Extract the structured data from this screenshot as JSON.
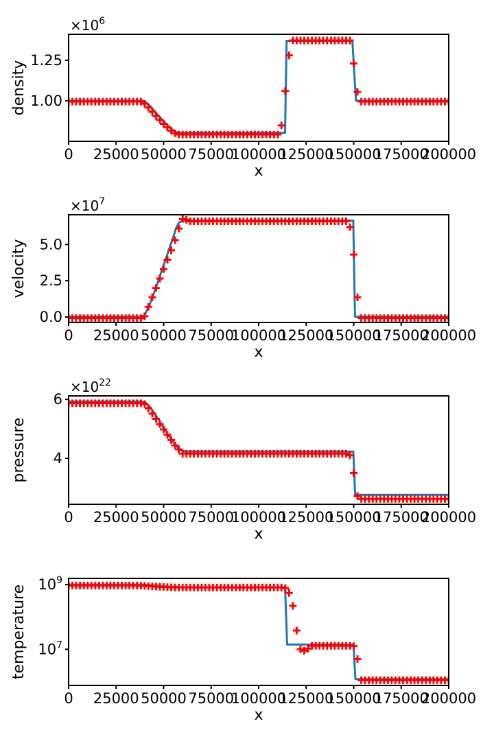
{
  "figure": {
    "background": "#ffffff",
    "xlabel": "x",
    "x_axis": {
      "min": 0,
      "max": 200000,
      "ticks": [
        0,
        25000,
        50000,
        75000,
        100000,
        125000,
        150000,
        175000,
        200000
      ],
      "tick_labels": [
        "0",
        "25000",
        "50000",
        "75000",
        "100000",
        "125000",
        "150000",
        "175000",
        "200000"
      ]
    },
    "colors": {
      "line": "#1f77b4",
      "markers": "#ff0000",
      "axis": "#000000",
      "text": "#000000"
    }
  },
  "chart_data": [
    {
      "type": "line",
      "name": "density",
      "ylabel": "density",
      "yscale": "linear",
      "unit_exponent": 6,
      "offset_label": {
        "base": "×10",
        "exp": "6"
      },
      "ylim": [
        0.75,
        1.41
      ],
      "yticks": [
        {
          "v": 1.0,
          "label": "1.00"
        },
        {
          "v": 1.25,
          "label": "1.25"
        }
      ],
      "series": [
        {
          "name": "line",
          "type": "line",
          "points": [
            [
              0,
              1.0
            ],
            [
              38500,
              1.0
            ],
            [
              40500,
              0.993
            ],
            [
              43000,
              0.966
            ],
            [
              46000,
              0.925
            ],
            [
              49000,
              0.886
            ],
            [
              52000,
              0.849
            ],
            [
              55000,
              0.818
            ],
            [
              57000,
              0.806
            ],
            [
              58500,
              0.803
            ],
            [
              113900,
              0.803
            ],
            [
              114700,
              1.37
            ],
            [
              149300,
              1.37
            ],
            [
              151200,
              1.0
            ],
            [
              200000,
              1.0
            ]
          ]
        },
        {
          "name": "markers",
          "type": "scatter",
          "marker": "plus",
          "x_start": 0,
          "x_step": 2000,
          "values": [
            0.995,
            0.995,
            0.995,
            0.995,
            0.995,
            0.995,
            0.995,
            0.995,
            0.995,
            0.995,
            0.995,
            0.995,
            0.995,
            0.995,
            0.995,
            0.995,
            0.995,
            0.995,
            0.995,
            0.995,
            0.982,
            0.958,
            0.932,
            0.906,
            0.882,
            0.858,
            0.836,
            0.816,
            0.8,
            0.792,
            0.792,
            0.792,
            0.792,
            0.792,
            0.792,
            0.792,
            0.792,
            0.792,
            0.792,
            0.792,
            0.792,
            0.792,
            0.792,
            0.792,
            0.792,
            0.792,
            0.792,
            0.792,
            0.792,
            0.792,
            0.792,
            0.792,
            0.792,
            0.792,
            0.792,
            0.792,
            0.848,
            1.06,
            1.28,
            1.372,
            1.372,
            1.372,
            1.372,
            1.372,
            1.372,
            1.372,
            1.372,
            1.372,
            1.372,
            1.372,
            1.372,
            1.372,
            1.372,
            1.372,
            1.372,
            1.23,
            1.055,
            0.995,
            0.995,
            0.995,
            0.995,
            0.995,
            0.995,
            0.995,
            0.995,
            0.995,
            0.995,
            0.995,
            0.995,
            0.995,
            0.995,
            0.995,
            0.995,
            0.995,
            0.995,
            0.995,
            0.995,
            0.995,
            0.995,
            0.995,
            0.995
          ]
        }
      ]
    },
    {
      "type": "line",
      "name": "velocity",
      "ylabel": "velocity",
      "yscale": "linear",
      "unit_exponent": 7,
      "offset_label": {
        "base": "×10",
        "exp": "7"
      },
      "ylim": [
        -0.38,
        7.05
      ],
      "yticks": [
        {
          "v": 0.0,
          "label": "0.0"
        },
        {
          "v": 2.5,
          "label": "2.5"
        },
        {
          "v": 5.0,
          "label": "5.0"
        }
      ],
      "series": [
        {
          "name": "line",
          "type": "line",
          "points": [
            [
              0,
              0.02
            ],
            [
              38500,
              0.02
            ],
            [
              40000,
              0.12
            ],
            [
              42500,
              0.8
            ],
            [
              45500,
              1.85
            ],
            [
              48500,
              3.0
            ],
            [
              51500,
              4.15
            ],
            [
              54500,
              5.3
            ],
            [
              56500,
              6.1
            ],
            [
              58000,
              6.5
            ],
            [
              60000,
              6.65
            ],
            [
              149800,
              6.65
            ],
            [
              150700,
              0.02
            ],
            [
              200000,
              0.02
            ]
          ]
        },
        {
          "name": "markers",
          "type": "scatter",
          "marker": "plus",
          "x_start": 0,
          "x_step": 2000,
          "values": [
            -0.08,
            -0.08,
            -0.08,
            -0.08,
            -0.08,
            -0.08,
            -0.08,
            -0.08,
            -0.08,
            -0.08,
            -0.08,
            -0.08,
            -0.08,
            -0.08,
            -0.08,
            -0.08,
            -0.08,
            -0.08,
            -0.08,
            -0.08,
            0.05,
            0.7,
            1.35,
            2.0,
            2.65,
            3.3,
            3.95,
            4.6,
            5.3,
            6.1,
            6.75,
            6.7,
            6.6,
            6.6,
            6.6,
            6.6,
            6.6,
            6.6,
            6.6,
            6.6,
            6.6,
            6.6,
            6.6,
            6.6,
            6.6,
            6.6,
            6.6,
            6.6,
            6.6,
            6.6,
            6.6,
            6.6,
            6.6,
            6.6,
            6.6,
            6.6,
            6.6,
            6.6,
            6.6,
            6.6,
            6.6,
            6.6,
            6.6,
            6.6,
            6.6,
            6.6,
            6.6,
            6.6,
            6.6,
            6.6,
            6.6,
            6.6,
            6.6,
            6.6,
            6.2,
            4.3,
            1.35,
            -0.08,
            -0.08,
            -0.08,
            -0.08,
            -0.08,
            -0.08,
            -0.08,
            -0.08,
            -0.08,
            -0.08,
            -0.08,
            -0.08,
            -0.08,
            -0.08,
            -0.08,
            -0.08,
            -0.08,
            -0.08,
            -0.08,
            -0.08,
            -0.08,
            -0.08,
            -0.08,
            -0.08
          ]
        }
      ]
    },
    {
      "type": "line",
      "name": "pressure",
      "ylabel": "pressure",
      "yscale": "linear",
      "unit_exponent": 22,
      "offset_label": {
        "base": "×10",
        "exp": "22"
      },
      "ylim": [
        2.44,
        6.12
      ],
      "yticks": [
        {
          "v": 4,
          "label": "4"
        },
        {
          "v": 6,
          "label": "6"
        }
      ],
      "series": [
        {
          "name": "line",
          "type": "line",
          "points": [
            [
              0,
              5.93
            ],
            [
              38500,
              5.93
            ],
            [
              40500,
              5.89
            ],
            [
              43000,
              5.73
            ],
            [
              46000,
              5.45
            ],
            [
              49000,
              5.14
            ],
            [
              52000,
              4.84
            ],
            [
              55000,
              4.56
            ],
            [
              57500,
              4.36
            ],
            [
              59500,
              4.26
            ],
            [
              61500,
              4.23
            ],
            [
              149800,
              4.23
            ],
            [
              150800,
              2.76
            ],
            [
              200000,
              2.76
            ]
          ]
        },
        {
          "name": "markers",
          "type": "scatter",
          "marker": "plus",
          "x_start": 0,
          "x_step": 2000,
          "values": [
            5.87,
            5.87,
            5.87,
            5.87,
            5.87,
            5.87,
            5.87,
            5.87,
            5.87,
            5.87,
            5.87,
            5.87,
            5.87,
            5.87,
            5.87,
            5.87,
            5.87,
            5.87,
            5.87,
            5.87,
            5.84,
            5.7,
            5.52,
            5.34,
            5.16,
            4.98,
            4.8,
            4.62,
            4.44,
            4.3,
            4.16,
            4.16,
            4.16,
            4.16,
            4.16,
            4.16,
            4.16,
            4.16,
            4.16,
            4.16,
            4.16,
            4.16,
            4.16,
            4.16,
            4.16,
            4.16,
            4.16,
            4.16,
            4.16,
            4.16,
            4.16,
            4.16,
            4.16,
            4.16,
            4.16,
            4.16,
            4.16,
            4.16,
            4.16,
            4.16,
            4.16,
            4.16,
            4.16,
            4.16,
            4.16,
            4.16,
            4.16,
            4.16,
            4.16,
            4.16,
            4.16,
            4.16,
            4.16,
            4.16,
            4.1,
            3.5,
            2.72,
            2.62,
            2.62,
            2.62,
            2.62,
            2.62,
            2.62,
            2.62,
            2.62,
            2.62,
            2.62,
            2.62,
            2.62,
            2.62,
            2.62,
            2.62,
            2.62,
            2.62,
            2.62,
            2.62,
            2.62,
            2.62,
            2.62,
            2.62,
            2.62
          ]
        }
      ]
    },
    {
      "type": "line",
      "name": "temperature",
      "ylabel": "temperature",
      "yscale": "log",
      "unit_exponent": 0,
      "offset_label": null,
      "ylim": [
        760000.0,
        1560000000.0
      ],
      "yticks": [
        {
          "v": 1000000000.0,
          "label": {
            "base": "10",
            "exp": "9"
          }
        },
        {
          "v": 10000000.0,
          "label": {
            "base": "10",
            "exp": "7"
          }
        }
      ],
      "series": [
        {
          "name": "line",
          "type": "line",
          "points": [
            [
              0,
              1000000000.0
            ],
            [
              38500,
              1000000000.0
            ],
            [
              43000,
              960000000.0
            ],
            [
              48000,
              905000000.0
            ],
            [
              53000,
              860000000.0
            ],
            [
              58000,
              835000000.0
            ],
            [
              113900,
              830000000.0
            ],
            [
              115000,
              14000000.0
            ],
            [
              149900,
              14000000.0
            ],
            [
              150900,
              1200000.0
            ],
            [
              200000,
              1200000.0
            ]
          ]
        },
        {
          "name": "markers",
          "type": "scatter",
          "marker": "plus",
          "x_start": 0,
          "x_step": 2000,
          "values": [
            940000000.0,
            940000000.0,
            940000000.0,
            940000000.0,
            940000000.0,
            940000000.0,
            940000000.0,
            940000000.0,
            940000000.0,
            940000000.0,
            940000000.0,
            940000000.0,
            940000000.0,
            940000000.0,
            940000000.0,
            940000000.0,
            940000000.0,
            940000000.0,
            940000000.0,
            930000000.0,
            915000000.0,
            900000000.0,
            885000000.0,
            870000000.0,
            855000000.0,
            845000000.0,
            835000000.0,
            825000000.0,
            820000000.0,
            815000000.0,
            815000000.0,
            815000000.0,
            815000000.0,
            815000000.0,
            815000000.0,
            815000000.0,
            815000000.0,
            815000000.0,
            815000000.0,
            815000000.0,
            815000000.0,
            815000000.0,
            815000000.0,
            815000000.0,
            815000000.0,
            815000000.0,
            815000000.0,
            815000000.0,
            815000000.0,
            815000000.0,
            815000000.0,
            815000000.0,
            815000000.0,
            815000000.0,
            815000000.0,
            815000000.0,
            815000000.0,
            780000000.0,
            550000000.0,
            220000000.0,
            38000000.0,
            10000000.0,
            9000000.0,
            10500000.0,
            12800000.0,
            12800000.0,
            12800000.0,
            12800000.0,
            12800000.0,
            12800000.0,
            12800000.0,
            12800000.0,
            12800000.0,
            12800000.0,
            12800000.0,
            12500000.0,
            5000000.0,
            1100000.0,
            1100000.0,
            1100000.0,
            1100000.0,
            1100000.0,
            1100000.0,
            1100000.0,
            1100000.0,
            1100000.0,
            1100000.0,
            1100000.0,
            1100000.0,
            1100000.0,
            1100000.0,
            1100000.0,
            1100000.0,
            1100000.0,
            1100000.0,
            1100000.0,
            1100000.0,
            1100000.0,
            1100000.0,
            1100000.0,
            1100000.0
          ]
        }
      ]
    }
  ]
}
